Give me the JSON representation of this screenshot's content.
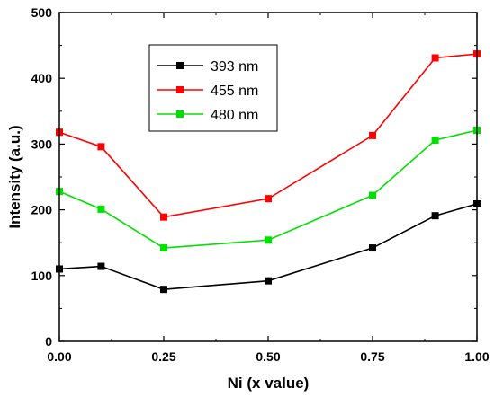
{
  "chart_data": {
    "type": "line",
    "xlabel": "Ni (x value)",
    "ylabel": "Intensity (a.u.)",
    "xlim": [
      0.0,
      1.0
    ],
    "ylim": [
      0,
      500
    ],
    "x_ticks": [
      "0.00",
      "0.25",
      "0.50",
      "0.75",
      "1.00"
    ],
    "y_ticks": [
      "0",
      "100",
      "200",
      "300",
      "400",
      "500"
    ],
    "x": [
      0.0,
      0.1,
      0.25,
      0.5,
      0.75,
      0.9,
      1.0
    ],
    "grid": false,
    "legend_position": "top-center",
    "series": [
      {
        "name": "393 nm",
        "color": "#000000",
        "values": [
          110,
          114,
          79,
          92,
          142,
          191,
          209
        ]
      },
      {
        "name": "455 nm",
        "color": "#ff0000",
        "values": [
          318,
          296,
          189,
          217,
          313,
          431,
          437
        ]
      },
      {
        "name": "480 nm",
        "color": "#00e000",
        "values": [
          228,
          201,
          142,
          154,
          222,
          306,
          321
        ]
      }
    ]
  }
}
